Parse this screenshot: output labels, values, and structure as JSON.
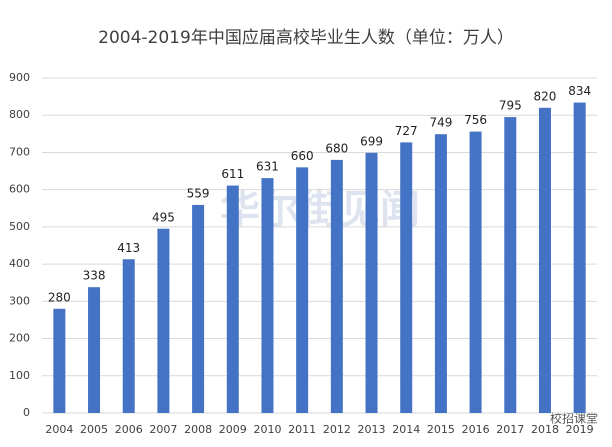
{
  "chart_data": {
    "type": "bar",
    "title": "2004-2019年中国应届高校毕业生人数（单位：万人）",
    "categories": [
      "2004",
      "2005",
      "2006",
      "2007",
      "2008",
      "2009",
      "2010",
      "2011",
      "2012",
      "2013",
      "2014",
      "2015",
      "2016",
      "2017",
      "2018",
      "2019"
    ],
    "values": [
      280,
      338,
      413,
      495,
      559,
      611,
      631,
      660,
      680,
      699,
      727,
      749,
      756,
      795,
      820,
      834
    ],
    "color": "#4472c4",
    "ylim": [
      0,
      900
    ],
    "yticks": [
      0,
      100,
      200,
      300,
      400,
      500,
      600,
      700,
      800,
      900
    ],
    "grid": true
  },
  "watermark": "华尔街见闻",
  "source": "校招课堂"
}
